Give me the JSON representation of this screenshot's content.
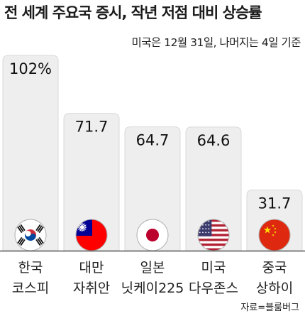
{
  "title": "전 세계 주요국 증시, 작년 저점 대비 상승률",
  "subtitle": "미국은 12월 31일, 나머지는 4일 기준",
  "source": "자료=블룸버그",
  "colors": {
    "bar": "#eeeeee",
    "bar_edge": "#d9d9d9",
    "baseline": "#555555",
    "background": "#ffffff"
  },
  "chart_data": {
    "type": "bar",
    "title": "전 세계 주요국 증시, 작년 저점 대비 상승률",
    "subtitle": "미국은 12월 31일, 나머지는 4일 기준",
    "categories": [
      [
        "한국",
        "코스피"
      ],
      [
        "대만",
        "자취안"
      ],
      [
        "일본",
        "닛케이225"
      ],
      [
        "미국",
        "다우존스"
      ],
      [
        "중국",
        "상하이"
      ]
    ],
    "values": [
      102,
      71.7,
      64.7,
      64.6,
      31.7
    ],
    "value_labels": [
      "102%",
      "71.7",
      "64.7",
      "64.6",
      "31.7"
    ],
    "flags": [
      "south-korea-flag-icon",
      "taiwan-flag-icon",
      "japan-flag-icon",
      "usa-flag-icon",
      "china-flag-icon"
    ],
    "ylim": [
      0,
      102
    ],
    "grid": false,
    "source": "자료=블룸버그"
  }
}
